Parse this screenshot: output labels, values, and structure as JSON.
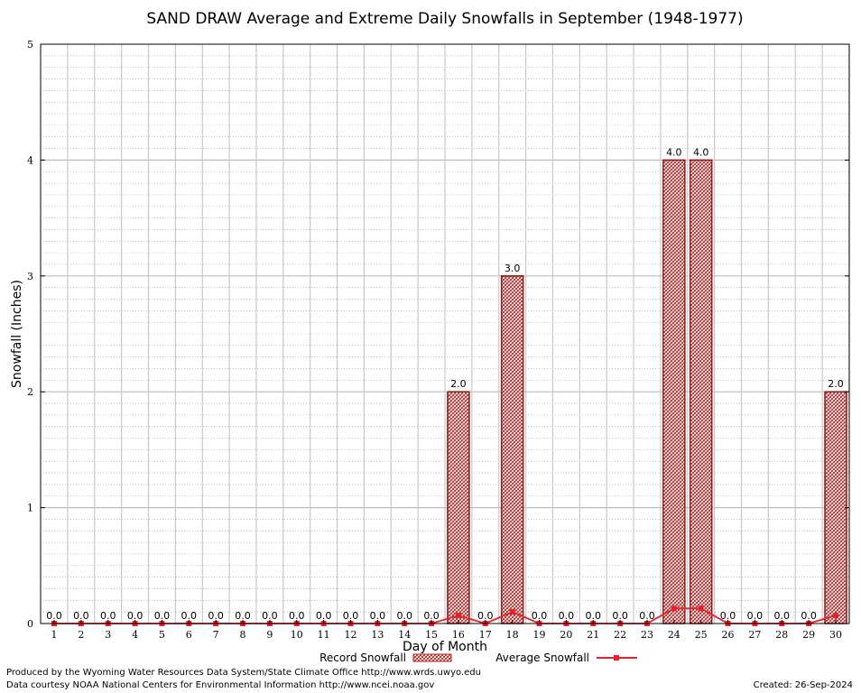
{
  "chart_data": {
    "type": "bar",
    "title": "SAND DRAW Average and Extreme Daily Snowfalls in September (1948-1977)",
    "xlabel": "Day of Month",
    "ylabel": "Snowfall (Inches)",
    "ylim": [
      0,
      5
    ],
    "yticks": [
      "0",
      "1",
      "2",
      "3",
      "4",
      "5"
    ],
    "grid": true,
    "categories": [
      "1",
      "2",
      "3",
      "4",
      "5",
      "6",
      "7",
      "8",
      "9",
      "10",
      "11",
      "12",
      "13",
      "14",
      "15",
      "16",
      "17",
      "18",
      "19",
      "20",
      "21",
      "22",
      "23",
      "24",
      "25",
      "26",
      "27",
      "28",
      "29",
      "30"
    ],
    "series": [
      {
        "name": "Record Snowfall",
        "kind": "bar",
        "color": "#b22222",
        "values": [
          0,
          0,
          0,
          0,
          0,
          0,
          0,
          0,
          0,
          0,
          0,
          0,
          0,
          0,
          0,
          2,
          0,
          3,
          0,
          0,
          0,
          0,
          0,
          4,
          4,
          0,
          0,
          0,
          0,
          2
        ],
        "labels": [
          "0.0",
          "0.0",
          "0.0",
          "0.0",
          "0.0",
          "0.0",
          "0.0",
          "0.0",
          "0.0",
          "0.0",
          "0.0",
          "0.0",
          "0.0",
          "0.0",
          "0.0",
          "2.0",
          "0.0",
          "3.0",
          "0.0",
          "0.0",
          "0.0",
          "0.0",
          "0.0",
          "4.0",
          "4.0",
          "0.0",
          "0.0",
          "0.0",
          "0.0",
          "2.0"
        ]
      },
      {
        "name": "Average Snowfall",
        "kind": "line",
        "color": "#e8202a",
        "values": [
          0,
          0,
          0,
          0,
          0,
          0,
          0,
          0,
          0,
          0,
          0,
          0,
          0,
          0,
          0,
          0.07,
          0,
          0.1,
          0,
          0,
          0,
          0,
          0,
          0.13,
          0.13,
          0,
          0,
          0,
          0,
          0.07
        ]
      }
    ],
    "legend_position": "bottom"
  },
  "footer": {
    "line1": "Produced by the Wyoming Water Resources Data System/State Climate Office http://www.wrds.uwyo.edu",
    "line2": "Data courtesy NOAA National Centers for Environmental Information http://www.ncei.noaa.gov",
    "created": "Created:  26-Sep-2024"
  }
}
